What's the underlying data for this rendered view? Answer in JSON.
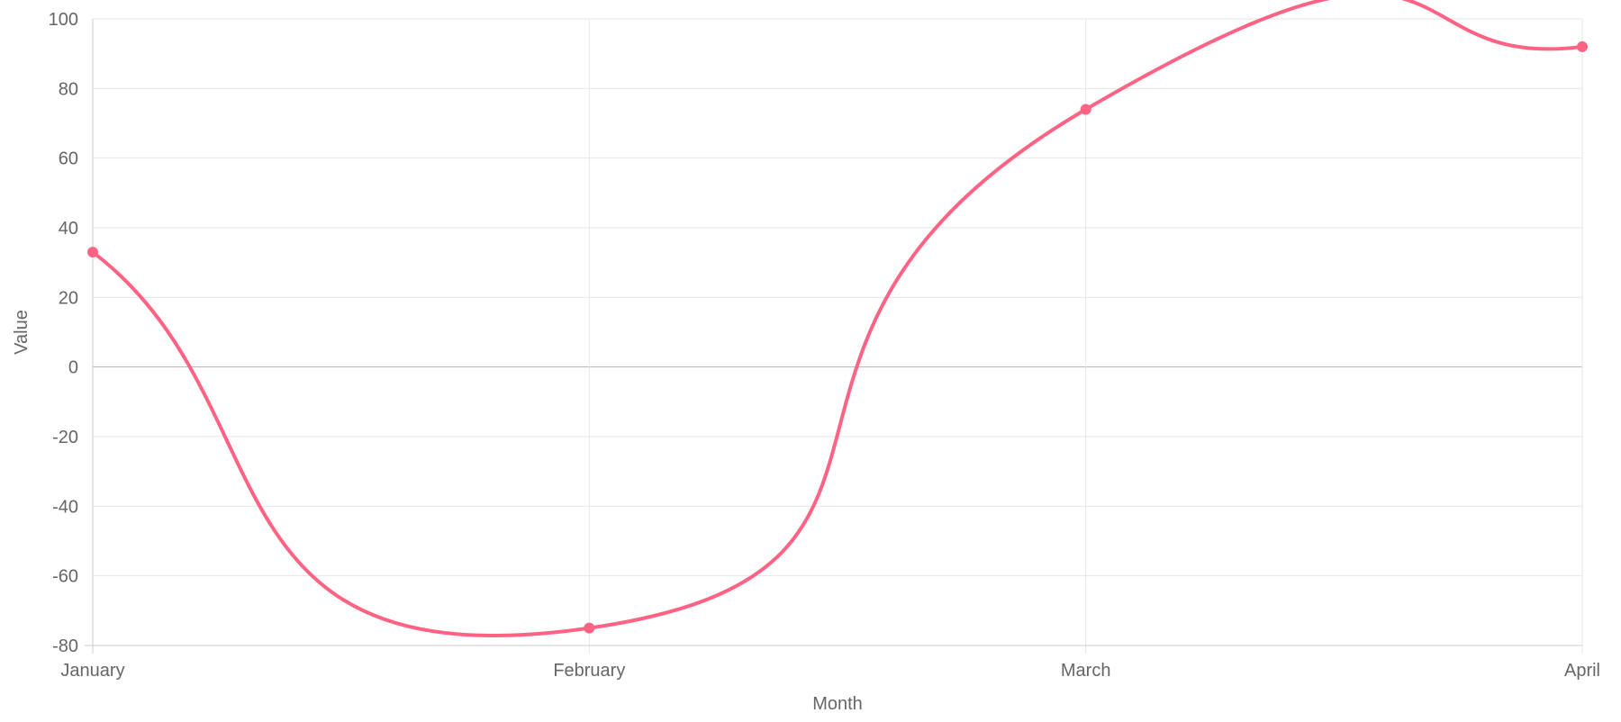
{
  "chart_data": {
    "type": "line",
    "title": "",
    "xlabel": "Month",
    "ylabel": "Value",
    "categories": [
      "January",
      "February",
      "March",
      "April"
    ],
    "series": [
      {
        "name": "",
        "color": "#ff6384",
        "values": [
          33,
          -75,
          74,
          92
        ]
      }
    ],
    "ylim": [
      -80,
      100
    ],
    "yticks": [
      100,
      80,
      60,
      40,
      20,
      0,
      -20,
      -40,
      -60,
      -80
    ],
    "grid": true,
    "legend": "none",
    "curve": "smooth"
  }
}
